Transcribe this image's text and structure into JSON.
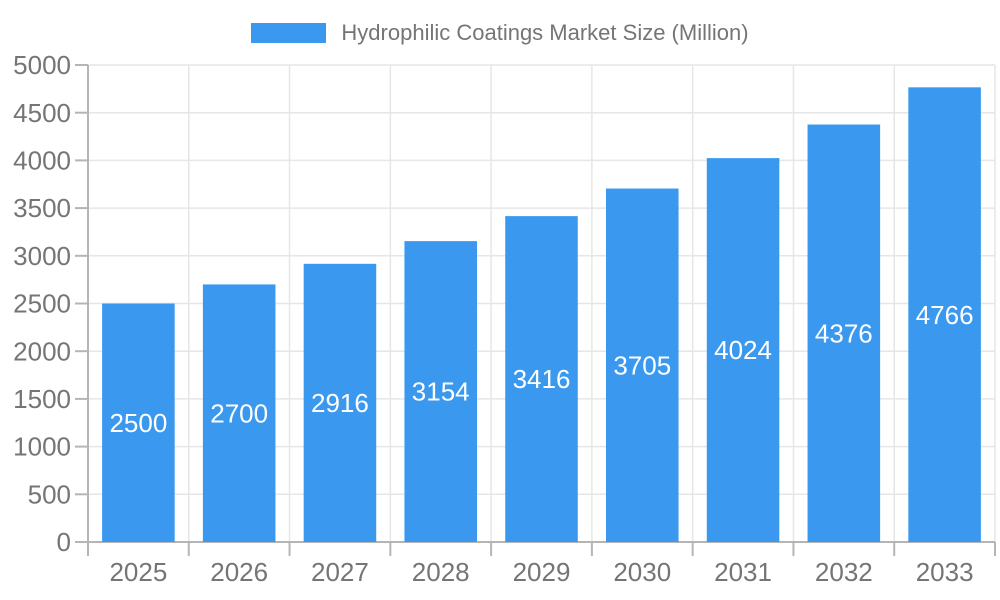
{
  "chart_data": {
    "type": "bar",
    "title": "",
    "xlabel": "",
    "ylabel": "",
    "categories": [
      "2025",
      "2026",
      "2027",
      "2028",
      "2029",
      "2030",
      "2031",
      "2032",
      "2033"
    ],
    "series": [
      {
        "name": "Hydrophilic Coatings Market Size (Million)",
        "values": [
          2500,
          2700,
          2916,
          3154,
          3416,
          3705,
          4024,
          4376,
          4766
        ]
      }
    ],
    "value_labels_visible": true,
    "ylim": [
      0,
      5000
    ],
    "yticks": [
      0,
      500,
      1000,
      1500,
      2000,
      2500,
      3000,
      3500,
      4000,
      4500,
      5000
    ],
    "grid": true,
    "legend_position": "top",
    "colors": {
      "bar": "#3A99EE",
      "grid_line": "#e6e6e6",
      "axis_line": "#b5b5b5",
      "tick_label": "#757575",
      "value_label": "#ffffff",
      "background": "#ffffff"
    }
  }
}
